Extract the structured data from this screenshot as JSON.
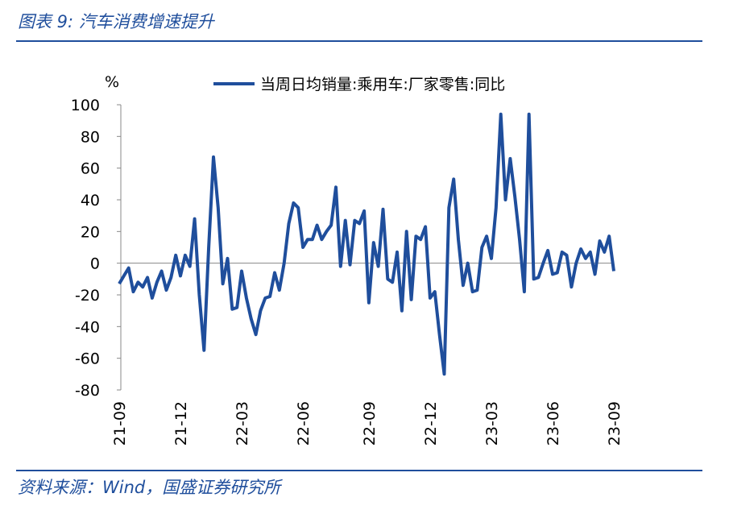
{
  "header": {
    "title": "图表 9:  汽车消费增速提升"
  },
  "chart_data": {
    "type": "line",
    "y_label": "%",
    "categories": [
      "21-09",
      null,
      null,
      null,
      null,
      null,
      null,
      null,
      null,
      null,
      null,
      null,
      null,
      "21-12",
      null,
      null,
      null,
      null,
      null,
      null,
      null,
      null,
      null,
      null,
      null,
      null,
      "22-03",
      null,
      null,
      null,
      null,
      null,
      null,
      null,
      null,
      null,
      null,
      null,
      null,
      "22-06",
      null,
      null,
      null,
      null,
      null,
      null,
      null,
      null,
      null,
      null,
      null,
      null,
      null,
      "22-09",
      null,
      null,
      null,
      null,
      null,
      null,
      null,
      null,
      null,
      null,
      null,
      null,
      "22-12",
      null,
      null,
      null,
      null,
      null,
      null,
      null,
      null,
      null,
      null,
      null,
      null,
      "23-03",
      null,
      null,
      null,
      null,
      null,
      null,
      null,
      null,
      null,
      null,
      null,
      null,
      "23-06",
      null,
      null,
      null,
      null,
      null,
      null,
      null,
      null,
      null,
      null,
      null,
      null,
      "23-09"
    ],
    "series": [
      {
        "name": "当周日均销量:乘用车:厂家零售:同比",
        "color": "#1f4e9c",
        "values": [
          -13,
          -8,
          -3,
          -18,
          -12,
          -15,
          -9,
          -22,
          -12,
          -5,
          -17,
          -9,
          5,
          -8,
          5,
          -2,
          28,
          -20,
          -55,
          10,
          67,
          35,
          -13,
          3,
          -29,
          -28,
          -5,
          -22,
          -35,
          -45,
          -30,
          -22,
          -21,
          -6,
          -17,
          0,
          25,
          38,
          35,
          10,
          15,
          15,
          24,
          15,
          20,
          24,
          48,
          -2,
          27,
          -1,
          27,
          25,
          33,
          -25,
          13,
          -2,
          34,
          -10,
          -12,
          7,
          -30,
          20,
          -23,
          17,
          15,
          23,
          -22,
          -18,
          -45,
          -70,
          35,
          53,
          15,
          -14,
          0,
          -18,
          -17,
          10,
          17,
          3,
          35,
          94,
          40,
          66,
          42,
          15,
          -18,
          94,
          -10,
          -9,
          0,
          8,
          -7,
          -6,
          7,
          5,
          -15,
          0,
          9,
          3,
          7,
          -7,
          14,
          7,
          17,
          -5
        ]
      }
    ],
    "ylim": [
      -80,
      100
    ],
    "yticks": [
      -80,
      -60,
      -40,
      -20,
      0,
      20,
      40,
      60,
      80,
      100
    ]
  },
  "footer": {
    "source": "资料来源：Wind，国盛证券研究所"
  }
}
